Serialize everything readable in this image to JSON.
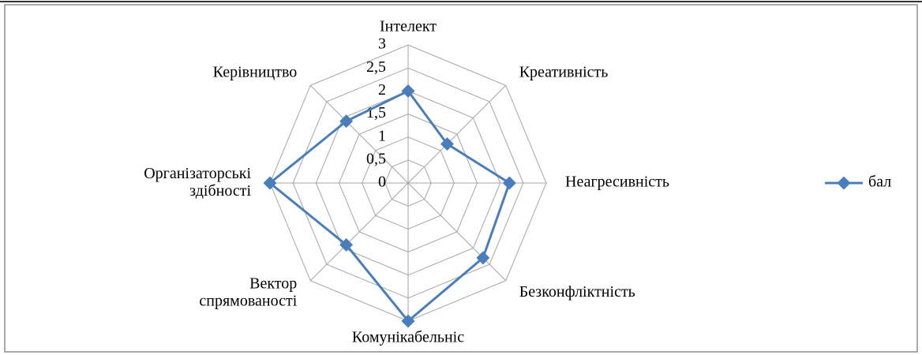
{
  "chart_data": {
    "type": "radar",
    "categories": [
      "Інтелект",
      "Креативність",
      "Неагресивність",
      "Безконфліктність",
      "Комунікабельніс",
      "Вектор спрямованості",
      "Організаторські здібності",
      "Керівництво"
    ],
    "series": [
      {
        "name": "бал",
        "color": "#4a7ebb",
        "values": [
          2,
          1.2,
          2.2,
          2.3,
          3,
          1.9,
          3,
          1.9
        ]
      }
    ],
    "ylim": [
      0,
      3
    ],
    "yticks": [
      0,
      {
        "value": 0.5,
        "label": "0,5"
      },
      1,
      {
        "value": 1.5,
        "label": "1,5"
      },
      2,
      {
        "value": 2.5,
        "label": "2,5"
      },
      3
    ],
    "grid": true,
    "legend": "right"
  }
}
